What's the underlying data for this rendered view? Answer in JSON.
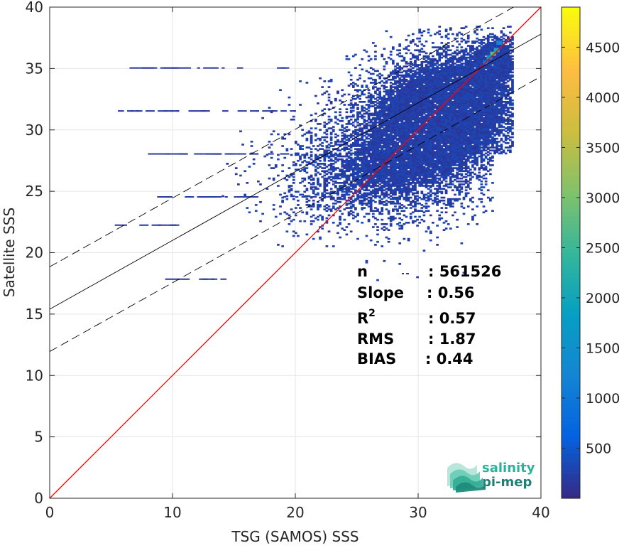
{
  "chart_data": {
    "type": "heatmap",
    "subtype": "2D density scatter (histogram) with regression lines",
    "xlabel": "TSG (SAMOS) SSS",
    "ylabel": "Satellite SSS",
    "xlim": [
      0,
      40
    ],
    "ylim": [
      0,
      40
    ],
    "x_ticks": [
      0,
      10,
      20,
      30,
      40
    ],
    "y_ticks": [
      0,
      5,
      10,
      15,
      20,
      25,
      30,
      35,
      40
    ],
    "grid": true,
    "colorbar": {
      "colormap": "parula",
      "range": [
        0,
        4900
      ],
      "ticks": [
        500,
        1000,
        1500,
        2000,
        2500,
        3000,
        3500,
        4000,
        4500
      ]
    },
    "stats": [
      {
        "label": "n",
        "value": ": 561526"
      },
      {
        "label": "Slope",
        "value": ": 0.56"
      },
      {
        "label": "R",
        "sup": "2",
        "value": ": 0.57"
      },
      {
        "label": "RMS",
        "value": ": 1.87"
      },
      {
        "label": "BIAS",
        "value": ": 0.44"
      }
    ],
    "lines": {
      "identity": {
        "slope": 1,
        "intercept": 0,
        "color": "#ff0000"
      },
      "regression": {
        "slope": 0.56,
        "intercept": 15.4,
        "color": "#000000"
      },
      "upper_bound": {
        "slope": 0.56,
        "intercept": 18.85,
        "color": "#000000",
        "style": "dashed"
      },
      "lower_bound": {
        "slope": 0.56,
        "intercept": 11.95,
        "color": "#000000",
        "style": "dashed"
      }
    },
    "density_blobs": [
      {
        "x": 33,
        "y": 32.5,
        "sx": 3.4,
        "sy": 2.5,
        "w": 1.0
      },
      {
        "x": 36,
        "y": 35.5,
        "sx": 1.2,
        "sy": 1.0,
        "w": 0.9
      },
      {
        "x": 31,
        "y": 30,
        "sx": 3.5,
        "sy": 2.6,
        "w": 0.7
      },
      {
        "x": 28,
        "y": 27.5,
        "sx": 4.0,
        "sy": 2.6,
        "w": 0.5
      },
      {
        "x": 25,
        "y": 25.5,
        "sx": 4.0,
        "sy": 2.0,
        "w": 0.25
      },
      {
        "x": 36.5,
        "y": 36.8,
        "sx": 0.6,
        "sy": 0.5,
        "w": 0.6
      }
    ],
    "hotspots": [
      {
        "x": 36.1,
        "y": 36.2,
        "level": 0.55
      },
      {
        "x": 36.4,
        "y": 36.5,
        "level": 0.42
      },
      {
        "x": 35.8,
        "y": 35.9,
        "level": 0.32
      },
      {
        "x": 36.6,
        "y": 37.1,
        "level": 0.26
      },
      {
        "x": 35.5,
        "y": 35.5,
        "level": 0.2
      }
    ],
    "sparse_bands": [
      {
        "y": 35.1,
        "x0": 6.5,
        "x1": 19
      },
      {
        "y": 31.6,
        "x0": 5.3,
        "x1": 20
      },
      {
        "y": 28.1,
        "x0": 7.5,
        "x1": 20
      },
      {
        "y": 24.6,
        "x0": 8,
        "x1": 23.5
      },
      {
        "y": 22.3,
        "x0": 5.3,
        "x1": 10
      },
      {
        "y": 17.9,
        "x0": 9.4,
        "x1": 14.3
      }
    ]
  },
  "logo": {
    "line1": "salinity",
    "line2": "pi-mep",
    "color1": "#2bb39a",
    "color2": "#1f7f74"
  },
  "colors": {
    "identity_line": "#ff0000",
    "regression_line": "#000000",
    "grid": "#e6e6e6",
    "axis": "#262626"
  }
}
